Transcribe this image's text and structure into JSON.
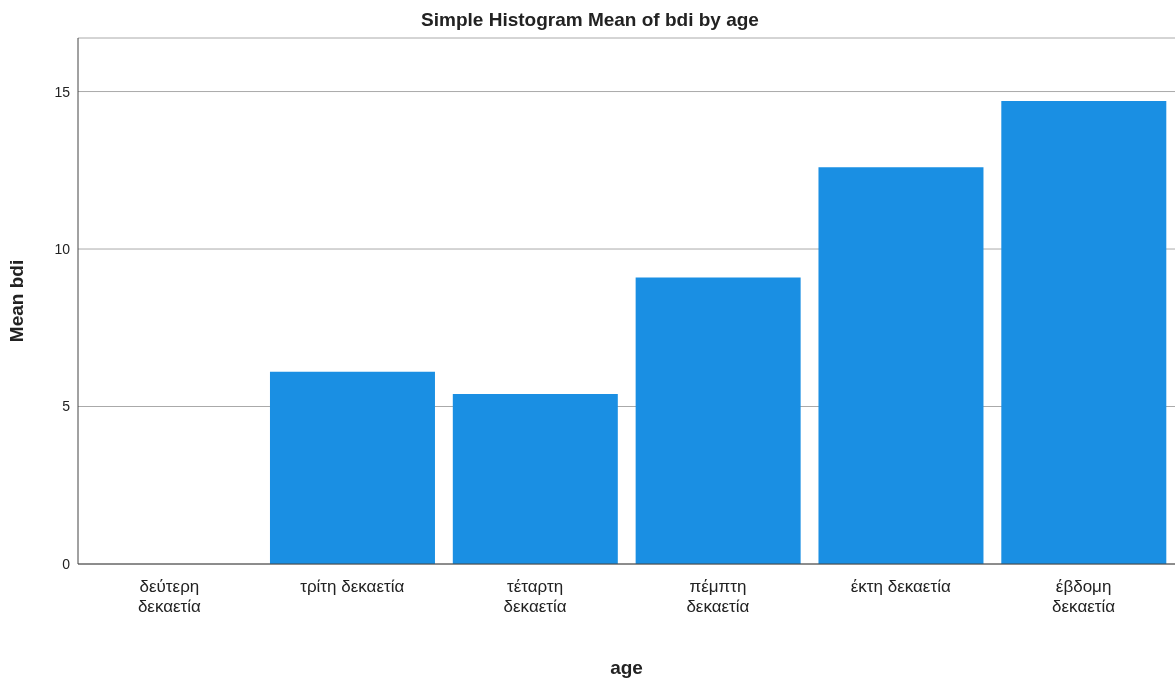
{
  "chart_data": {
    "type": "bar",
    "title": "Simple Histogram Mean of bdi by age",
    "xlabel": "age",
    "ylabel": "Mean bdi",
    "categories": [
      "δεύτερη δεκαετία",
      "τρίτη δεκαετία",
      "τέταρτη δεκαετία",
      "πέμπτη δεκαετία",
      "έκτη δεκαετία",
      "έβδομη δεκαετία"
    ],
    "values": [
      null,
      6.1,
      5.4,
      9.1,
      12.6,
      14.7
    ],
    "color": "#1a8fe3",
    "ylim": [
      0,
      16.7
    ],
    "yticks": [
      0,
      5,
      10,
      15
    ],
    "grid": "y",
    "legend": false
  }
}
